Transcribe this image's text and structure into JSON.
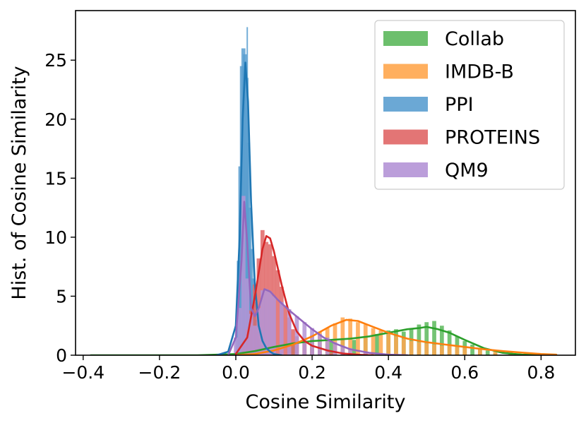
{
  "chart_data": {
    "type": "histogram",
    "title": "",
    "xlabel": "Cosine Similarity",
    "ylabel": "Hist. of Cosine Similarity",
    "xlim": [
      -0.42,
      0.89
    ],
    "ylim": [
      0,
      29.2
    ],
    "xticks": [
      -0.4,
      -0.2,
      0.0,
      0.2,
      0.4,
      0.6,
      0.8
    ],
    "xtick_labels": [
      "−0.4",
      "−0.2",
      "0.0",
      "0.2",
      "0.4",
      "0.6",
      "0.8"
    ],
    "yticks": [
      0,
      5,
      10,
      15,
      20,
      25
    ],
    "ytick_labels": [
      "0",
      "5",
      "10",
      "15",
      "20",
      "25"
    ],
    "legend_position": "top-right",
    "series": [
      {
        "name": "Collab",
        "fill": "#5cb85c",
        "line": "#2ca02c",
        "bins": [
          [
            0.0,
            0.1
          ],
          [
            0.05,
            0.3
          ],
          [
            0.1,
            0.6
          ],
          [
            0.15,
            0.9
          ],
          [
            0.2,
            1.1
          ],
          [
            0.25,
            1.2
          ],
          [
            0.28,
            1.3
          ],
          [
            0.31,
            1.3
          ],
          [
            0.34,
            1.5
          ],
          [
            0.37,
            1.8
          ],
          [
            0.4,
            2.1
          ],
          [
            0.42,
            2.2
          ],
          [
            0.44,
            2.0
          ],
          [
            0.46,
            2.3
          ],
          [
            0.48,
            2.6
          ],
          [
            0.5,
            2.8
          ],
          [
            0.52,
            2.9
          ],
          [
            0.54,
            2.5
          ],
          [
            0.56,
            2.1
          ],
          [
            0.58,
            1.6
          ],
          [
            0.6,
            1.2
          ],
          [
            0.62,
            0.9
          ],
          [
            0.64,
            0.6
          ],
          [
            0.66,
            0.4
          ],
          [
            0.68,
            0.2
          ],
          [
            0.72,
            0.1
          ]
        ],
        "kde": [
          [
            -0.38,
            0.0
          ],
          [
            -0.1,
            0.0
          ],
          [
            0.0,
            0.1
          ],
          [
            0.05,
            0.35
          ],
          [
            0.1,
            0.7
          ],
          [
            0.15,
            1.0
          ],
          [
            0.2,
            1.2
          ],
          [
            0.25,
            1.3
          ],
          [
            0.3,
            1.4
          ],
          [
            0.35,
            1.6
          ],
          [
            0.4,
            1.9
          ],
          [
            0.45,
            2.2
          ],
          [
            0.48,
            2.3
          ],
          [
            0.5,
            2.4
          ],
          [
            0.53,
            2.2
          ],
          [
            0.56,
            1.9
          ],
          [
            0.6,
            1.3
          ],
          [
            0.65,
            0.6
          ],
          [
            0.7,
            0.2
          ],
          [
            0.75,
            0.05
          ],
          [
            0.84,
            0.0
          ]
        ]
      },
      {
        "name": "IMDB-B",
        "fill": "#ffa64d",
        "line": "#ff7f0e",
        "bins": [
          [
            0.1,
            0.3
          ],
          [
            0.14,
            0.7
          ],
          [
            0.18,
            1.2
          ],
          [
            0.2,
            1.7
          ],
          [
            0.22,
            2.0
          ],
          [
            0.24,
            2.3
          ],
          [
            0.26,
            2.7
          ],
          [
            0.28,
            3.2
          ],
          [
            0.3,
            3.1
          ],
          [
            0.32,
            2.8
          ],
          [
            0.34,
            2.6
          ],
          [
            0.36,
            2.3
          ],
          [
            0.38,
            2.1
          ],
          [
            0.4,
            1.9
          ],
          [
            0.42,
            1.6
          ],
          [
            0.44,
            1.4
          ],
          [
            0.46,
            1.2
          ],
          [
            0.48,
            1.1
          ],
          [
            0.5,
            1.0
          ],
          [
            0.52,
            0.9
          ],
          [
            0.54,
            0.8
          ],
          [
            0.56,
            0.8
          ],
          [
            0.58,
            0.7
          ],
          [
            0.6,
            0.6
          ],
          [
            0.64,
            0.5
          ],
          [
            0.68,
            0.4
          ],
          [
            0.72,
            0.3
          ],
          [
            0.76,
            0.2
          ],
          [
            0.8,
            0.15
          ],
          [
            0.83,
            0.1
          ]
        ],
        "kde": [
          [
            0.0,
            0.0
          ],
          [
            0.05,
            0.1
          ],
          [
            0.1,
            0.4
          ],
          [
            0.15,
            0.9
          ],
          [
            0.2,
            1.6
          ],
          [
            0.25,
            2.5
          ],
          [
            0.29,
            3.0
          ],
          [
            0.32,
            2.9
          ],
          [
            0.36,
            2.4
          ],
          [
            0.4,
            1.9
          ],
          [
            0.45,
            1.4
          ],
          [
            0.5,
            1.1
          ],
          [
            0.55,
            0.9
          ],
          [
            0.6,
            0.7
          ],
          [
            0.65,
            0.5
          ],
          [
            0.7,
            0.35
          ],
          [
            0.75,
            0.22
          ],
          [
            0.8,
            0.1
          ],
          [
            0.84,
            0.05
          ]
        ]
      },
      {
        "name": "PPI",
        "fill": "#5b9fd0",
        "line": "#1f77b4",
        "bins": [
          [
            0.004,
            2.5
          ],
          [
            0.008,
            8.0
          ],
          [
            0.012,
            16.0
          ],
          [
            0.016,
            24.5
          ],
          [
            0.02,
            26.0
          ],
          [
            0.024,
            25.5
          ],
          [
            0.028,
            23.5
          ],
          [
            0.032,
            18.0
          ],
          [
            0.036,
            12.5
          ],
          [
            0.04,
            9.0
          ],
          [
            0.044,
            6.5
          ],
          [
            0.048,
            4.5
          ],
          [
            0.052,
            3.0
          ],
          [
            0.056,
            2.0
          ],
          [
            0.06,
            1.3
          ],
          [
            0.064,
            0.8
          ],
          [
            0.068,
            0.5
          ],
          [
            0.072,
            0.3
          ],
          [
            0.076,
            0.2
          ]
        ],
        "spike": [
          0.03,
          27.8
        ],
        "kde": [
          [
            -0.05,
            0.0
          ],
          [
            -0.02,
            0.3
          ],
          [
            0.0,
            2.5
          ],
          [
            0.01,
            10.0
          ],
          [
            0.018,
            20.0
          ],
          [
            0.025,
            24.8
          ],
          [
            0.032,
            21.5
          ],
          [
            0.04,
            13.0
          ],
          [
            0.05,
            6.0
          ],
          [
            0.06,
            2.5
          ],
          [
            0.07,
            1.2
          ],
          [
            0.08,
            0.6
          ],
          [
            0.09,
            0.3
          ],
          [
            0.1,
            0.1
          ],
          [
            0.12,
            0.0
          ]
        ]
      },
      {
        "name": "PROTEINS",
        "fill": "#e06666",
        "line": "#d62728",
        "bins": [
          [
            0.02,
            0.8
          ],
          [
            0.03,
            2.2
          ],
          [
            0.04,
            3.8
          ],
          [
            0.05,
            6.0
          ],
          [
            0.06,
            8.2
          ],
          [
            0.07,
            10.6
          ],
          [
            0.08,
            9.6
          ],
          [
            0.09,
            9.4
          ],
          [
            0.1,
            8.4
          ],
          [
            0.11,
            7.2
          ],
          [
            0.12,
            5.8
          ],
          [
            0.13,
            4.2
          ],
          [
            0.14,
            3.2
          ],
          [
            0.15,
            2.2
          ],
          [
            0.16,
            1.6
          ],
          [
            0.18,
            1.0
          ],
          [
            0.2,
            0.6
          ],
          [
            0.22,
            0.4
          ],
          [
            0.25,
            0.2
          ],
          [
            0.28,
            0.1
          ]
        ],
        "kde": [
          [
            0.0,
            0.1
          ],
          [
            0.03,
            1.5
          ],
          [
            0.05,
            5.0
          ],
          [
            0.07,
            9.0
          ],
          [
            0.08,
            10.1
          ],
          [
            0.09,
            9.9
          ],
          [
            0.1,
            8.8
          ],
          [
            0.12,
            6.0
          ],
          [
            0.14,
            3.5
          ],
          [
            0.16,
            2.0
          ],
          [
            0.18,
            1.2
          ],
          [
            0.2,
            0.8
          ],
          [
            0.24,
            0.4
          ],
          [
            0.28,
            0.15
          ],
          [
            0.32,
            0.05
          ],
          [
            0.36,
            0.0
          ]
        ]
      },
      {
        "name": "QM9",
        "fill": "#b494d6",
        "line": "#9467bd",
        "bins": [
          [
            0.0,
            1.5
          ],
          [
            0.01,
            4.0
          ],
          [
            0.02,
            13.5
          ],
          [
            0.03,
            6.5
          ],
          [
            0.04,
            3.5
          ],
          [
            0.05,
            2.5
          ],
          [
            0.06,
            4.0
          ],
          [
            0.07,
            5.5
          ],
          [
            0.08,
            5.6
          ],
          [
            0.09,
            5.4
          ],
          [
            0.1,
            5.0
          ],
          [
            0.12,
            4.5
          ],
          [
            0.14,
            3.9
          ],
          [
            0.16,
            3.3
          ],
          [
            0.18,
            2.8
          ],
          [
            0.2,
            2.3
          ],
          [
            0.22,
            1.8
          ],
          [
            0.24,
            1.5
          ],
          [
            0.26,
            1.1
          ],
          [
            0.28,
            0.8
          ],
          [
            0.3,
            0.6
          ],
          [
            0.34,
            0.3
          ],
          [
            0.38,
            0.15
          ]
        ],
        "kde": [
          [
            -0.02,
            0.0
          ],
          [
            0.0,
            1.5
          ],
          [
            0.015,
            8.0
          ],
          [
            0.022,
            13.0
          ],
          [
            0.03,
            9.5
          ],
          [
            0.04,
            4.0
          ],
          [
            0.05,
            3.3
          ],
          [
            0.06,
            4.0
          ],
          [
            0.075,
            5.6
          ],
          [
            0.09,
            5.4
          ],
          [
            0.11,
            4.7
          ],
          [
            0.14,
            3.8
          ],
          [
            0.17,
            3.0
          ],
          [
            0.2,
            2.2
          ],
          [
            0.23,
            1.5
          ],
          [
            0.26,
            1.0
          ],
          [
            0.3,
            0.5
          ],
          [
            0.35,
            0.2
          ],
          [
            0.4,
            0.05
          ],
          [
            0.45,
            0.0
          ]
        ]
      }
    ]
  }
}
